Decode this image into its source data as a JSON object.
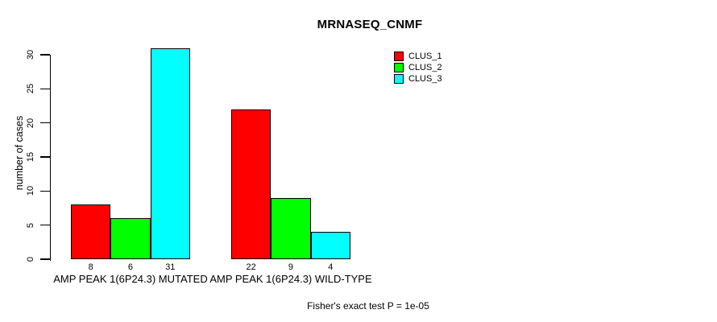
{
  "title": "MRNASEQ_CNMF",
  "chart_data": {
    "type": "bar",
    "grouped": true,
    "title": "MRNASEQ_CNMF",
    "categories": [
      "AMP PEAK 1(6P24.3) MUTATED",
      "AMP PEAK 1(6P24.3) WILD-TYPE"
    ],
    "series": [
      {
        "name": "CLUS_1",
        "color": "#FF0000",
        "values": [
          8,
          22
        ]
      },
      {
        "name": "CLUS_2",
        "color": "#00FF00",
        "values": [
          6,
          9
        ]
      },
      {
        "name": "CLUS_3",
        "color": "#00FFFF",
        "values": [
          31,
          4
        ]
      }
    ],
    "xlabel": "",
    "ylabel": "number of cases",
    "ylim": [
      0,
      30
    ],
    "yticks": [
      0,
      5,
      10,
      15,
      20,
      25,
      30
    ],
    "bar_value_labels_shown": true,
    "grid": false,
    "legend_position": "right-of-plot-top",
    "annotation": "Fisher's exact test P = 1e-05"
  },
  "colors": {
    "background": "#FFFFFF",
    "axis": "#000000",
    "text": "#000000",
    "clus_1": "#FF0000",
    "clus_2": "#00FF00",
    "clus_3": "#00FFFF"
  }
}
